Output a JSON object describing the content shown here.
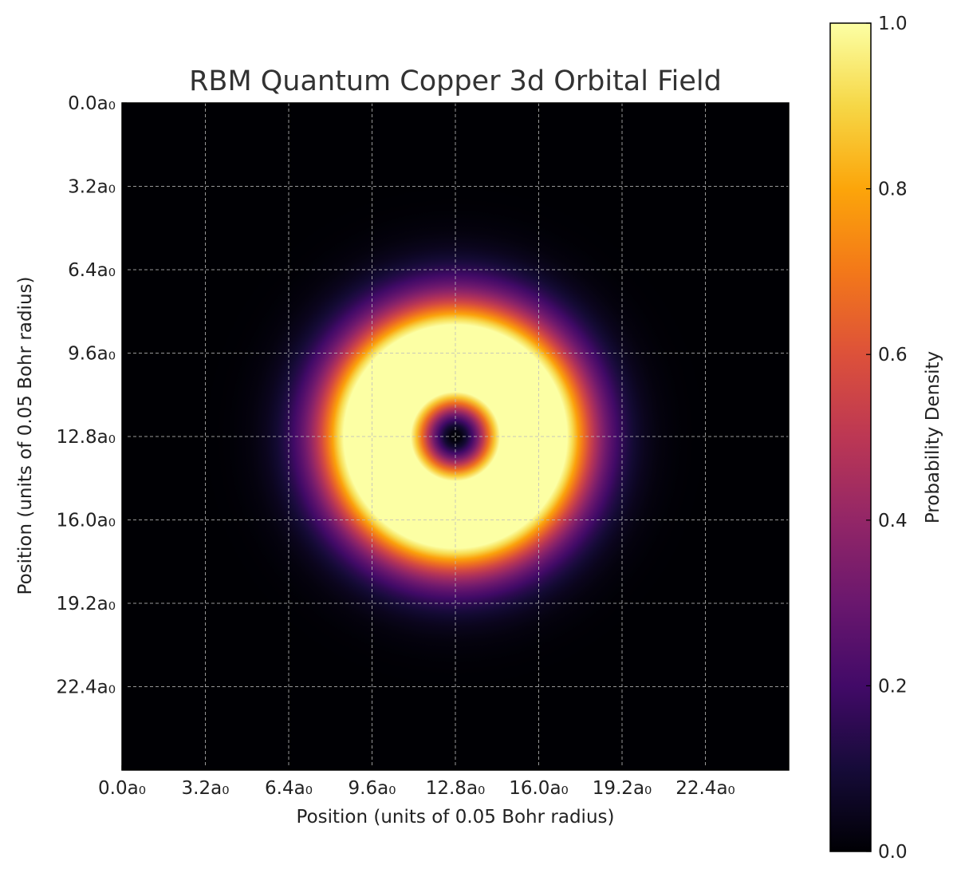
{
  "chart_data": {
    "type": "heatmap",
    "title": "RBM Quantum Copper 3d Orbital Field",
    "xlabel": "Position (units of 0.05 Bohr radius)",
    "ylabel": "Position (units of 0.05 Bohr radius)",
    "x_tick_labels": [
      "0.0a₀",
      "3.2a₀",
      "6.4a₀",
      "9.6a₀",
      "12.8a₀",
      "16.0a₀",
      "19.2a₀",
      "22.4a₀"
    ],
    "y_tick_labels": [
      "0.0a₀",
      "3.2a₀",
      "6.4a₀",
      "9.6a₀",
      "12.8a₀",
      "16.0a₀",
      "19.2a₀",
      "22.4a₀"
    ],
    "x_ticks": [
      0,
      3.2,
      6.4,
      9.6,
      12.8,
      16.0,
      19.2,
      22.4
    ],
    "y_ticks": [
      0,
      3.2,
      6.4,
      9.6,
      12.8,
      16.0,
      19.2,
      22.4
    ],
    "xlim": [
      0,
      25.6
    ],
    "ylim": [
      0,
      25.6
    ],
    "y_axis_inverted": true,
    "grid": true,
    "colormap": "inferno",
    "colorbar": {
      "label": "Probability Density",
      "range": [
        0.0,
        1.0
      ],
      "tick_labels": [
        "0.0",
        "0.2",
        "0.4",
        "0.6",
        "0.8",
        "1.0"
      ],
      "ticks": [
        0.0,
        0.2,
        0.4,
        0.6,
        0.8,
        1.0
      ]
    },
    "field": {
      "description_shape": "radial ring",
      "center": [
        12.8,
        12.8
      ],
      "peak_radius": 2.9,
      "peak_value": 1.0,
      "center_value": 0.0,
      "max_value_clip": 1.0
    }
  }
}
